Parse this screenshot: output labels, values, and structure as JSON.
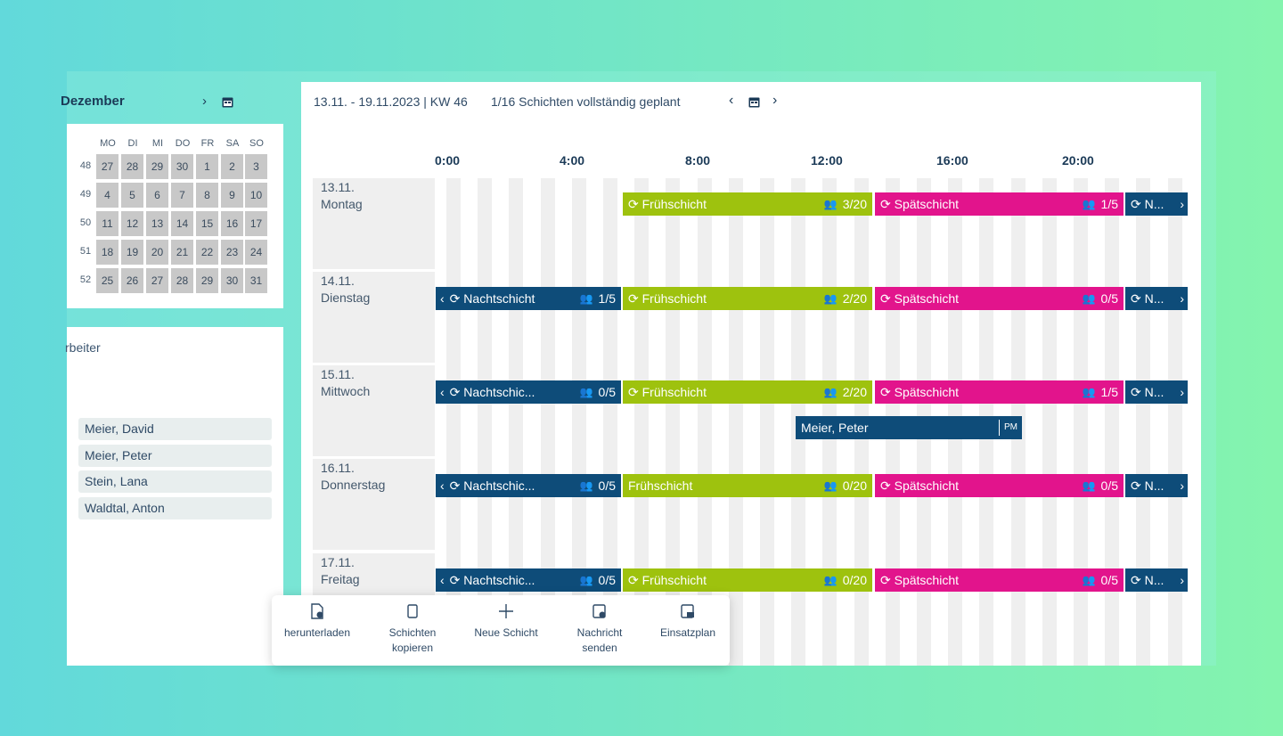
{
  "minical": {
    "month": "Dezember",
    "weekdays": [
      "MO",
      "DI",
      "MI",
      "DO",
      "FR",
      "SA",
      "SO"
    ],
    "weeks": [
      {
        "num": "48",
        "days": [
          "27",
          "28",
          "29",
          "30",
          "1",
          "2",
          "3"
        ]
      },
      {
        "num": "49",
        "days": [
          "4",
          "5",
          "6",
          "7",
          "8",
          "9",
          "10"
        ]
      },
      {
        "num": "50",
        "days": [
          "11",
          "12",
          "13",
          "14",
          "15",
          "16",
          "17"
        ]
      },
      {
        "num": "51",
        "days": [
          "18",
          "19",
          "20",
          "21",
          "22",
          "23",
          "24"
        ]
      },
      {
        "num": "52",
        "days": [
          "25",
          "26",
          "27",
          "28",
          "29",
          "30",
          "31"
        ]
      }
    ]
  },
  "employees": {
    "title": "rbeiter",
    "list": [
      "Meier, David",
      "Meier, Peter",
      "Stein, Lana",
      "Waldtal, Anton"
    ]
  },
  "header": {
    "range": "13.11. - 19.11.2023 | KW 46",
    "progress": "1/16 Schichten vollständig geplant"
  },
  "times": [
    "0:00",
    "4:00",
    "8:00",
    "12:00",
    "16:00",
    "20:00"
  ],
  "days": [
    {
      "date": "13.11.",
      "name": "Montag"
    },
    {
      "date": "14.11.",
      "name": "Dienstag"
    },
    {
      "date": "15.11.",
      "name": "Mittwoch"
    },
    {
      "date": "16.11.",
      "name": "Donnerstag"
    },
    {
      "date": "17.11.",
      "name": "Freitag"
    }
  ],
  "shifts": {
    "nacht_full": "Nachtschicht",
    "nacht_short": "Nachtschic...",
    "frueh": "Frühschicht",
    "spaet": "Spätschicht",
    "next": "N..."
  },
  "counts": {
    "r0": {
      "frueh": "3/20",
      "spaet": "1/5"
    },
    "r1": {
      "nacht": "1/5",
      "frueh": "2/20",
      "spaet": "0/5"
    },
    "r2": {
      "nacht": "0/5",
      "frueh": "2/20",
      "spaet": "1/5"
    },
    "r3": {
      "nacht": "0/5",
      "frueh": "0/20",
      "spaet": "0/5"
    },
    "r4": {
      "nacht": "0/5",
      "frueh": "0/20",
      "spaet": "0/5"
    }
  },
  "assignment": {
    "name": "Meier, Peter",
    "tag": "PM"
  },
  "toolbar": {
    "download": "herunterladen",
    "copy1": "Schichten",
    "copy2": "kopieren",
    "new": "Neue Schicht",
    "msg1": "Nachricht",
    "msg2": "senden",
    "plan": "Einsatzplan"
  },
  "colors": {
    "nacht": "#0e4c79",
    "frueh": "#9ec20e",
    "spaet": "#e2148c"
  }
}
